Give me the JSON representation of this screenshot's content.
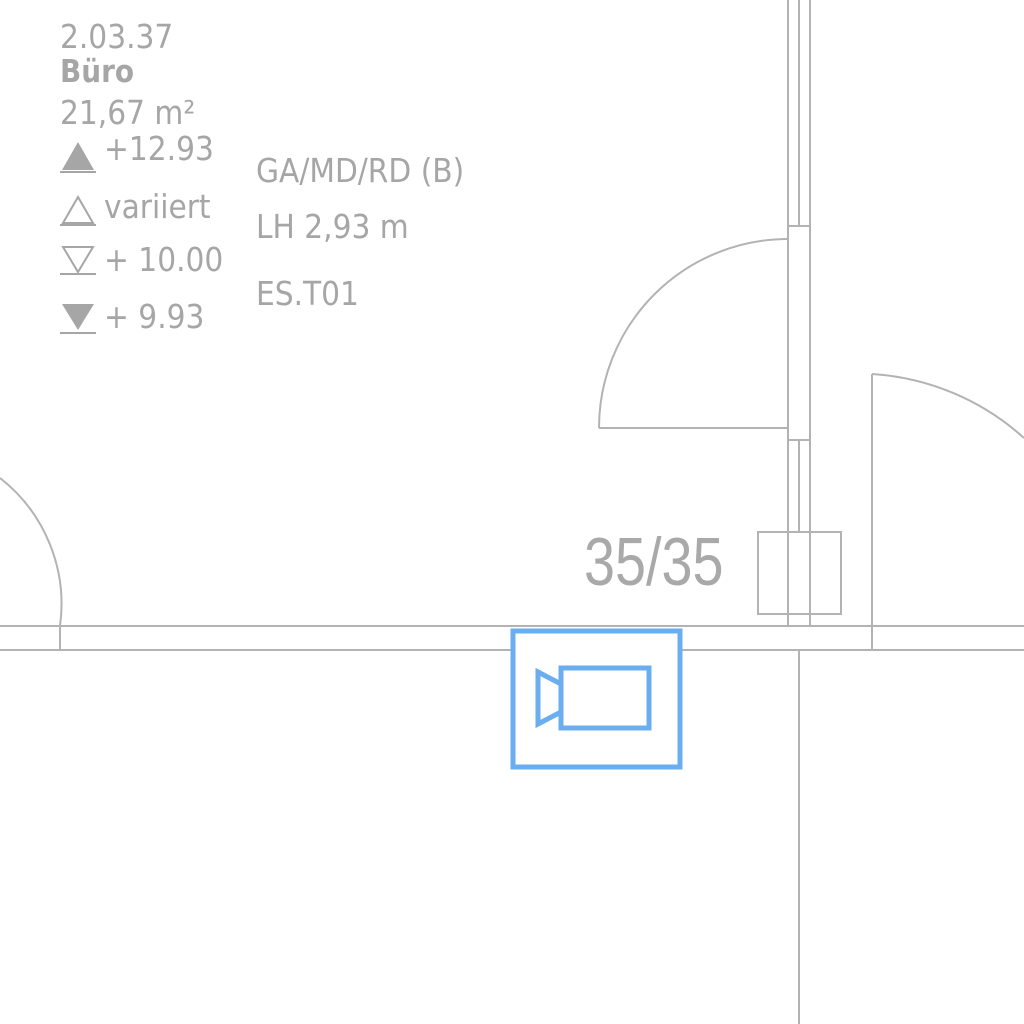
{
  "room": {
    "number": "2.03.37",
    "name": "Büro",
    "area": "21,67 m²",
    "floor_type": "GA/MD/RD (B)",
    "ceiling_height": "LH 2,93 m",
    "code": "ES.T01"
  },
  "elevations": {
    "top_of_structure": "+12.93",
    "ceiling": "variiert",
    "finished_floor": "+ 10.00",
    "raw_floor": "+ 9.93"
  },
  "column": {
    "size": "35/35"
  },
  "device": {
    "icon": "video-camera-icon",
    "color": "#6aaeef"
  },
  "colors": {
    "lines": "#b3b3b3",
    "text": "#a6a6a6"
  }
}
